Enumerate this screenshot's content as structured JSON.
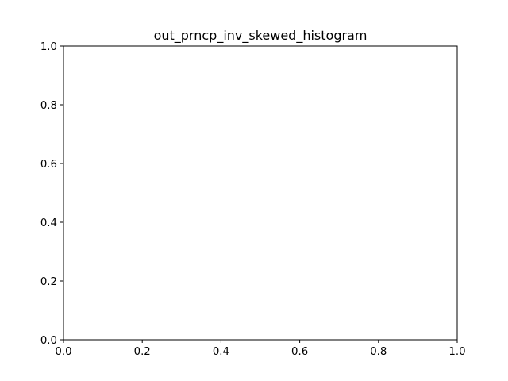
{
  "chart_data": {
    "type": "bar",
    "title": "out_prncp_inv_skewed_histogram",
    "xlabel": "",
    "ylabel": "",
    "xlim": [
      0.0,
      1.0
    ],
    "ylim": [
      0.0,
      1.0
    ],
    "xticks": [
      "0.0",
      "0.2",
      "0.4",
      "0.6",
      "0.8",
      "1.0"
    ],
    "yticks": [
      "0.0",
      "0.2",
      "0.4",
      "0.6",
      "0.8",
      "1.0"
    ],
    "series": [],
    "grid": false
  }
}
